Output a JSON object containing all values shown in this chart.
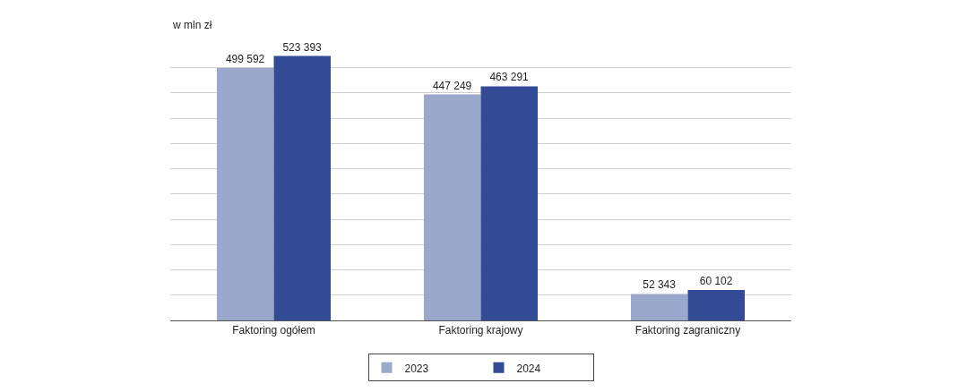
{
  "chart_data": {
    "type": "bar",
    "ylabel": "w mln zł",
    "categories": [
      "Faktoring ogółem",
      "Faktoring krajowy",
      "Faktoring zagraniczny"
    ],
    "series": [
      {
        "name": "2023",
        "color": "#9aa8cc",
        "values": [
          499592,
          447249,
          52343
        ]
      },
      {
        "name": "2024",
        "color": "#334a94",
        "values": [
          523393,
          463291,
          60102
        ]
      }
    ],
    "grid": "y",
    "tick_labels": "x",
    "data_labels": true,
    "legend": "bottom"
  }
}
